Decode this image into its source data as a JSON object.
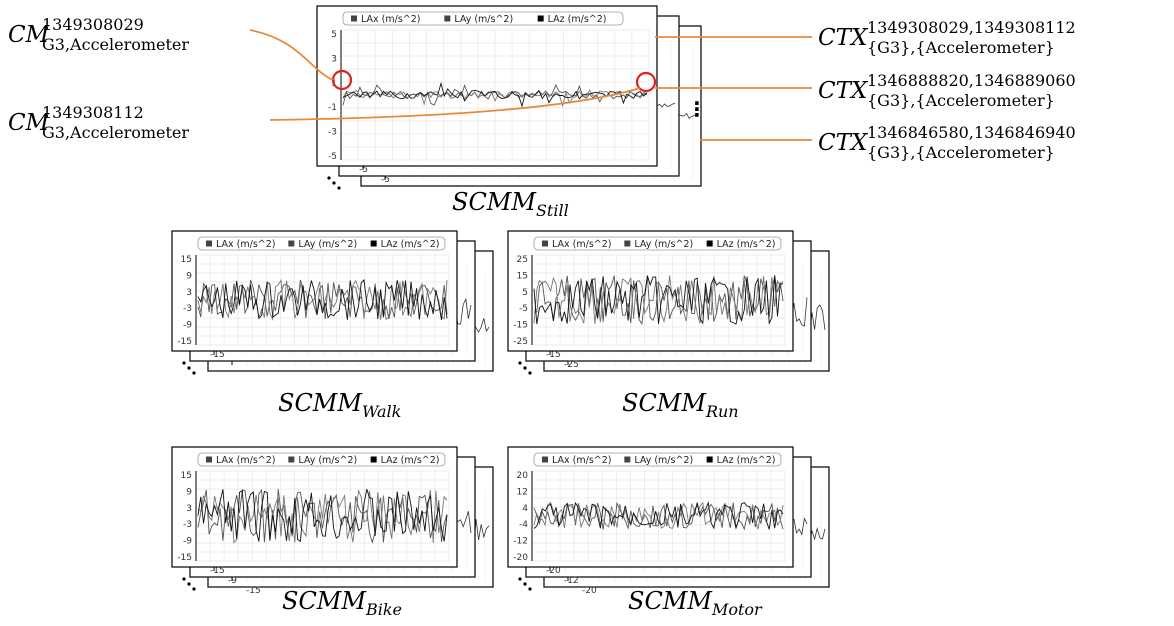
{
  "colors": {
    "connector": "#e8893a",
    "highlight": "#e02020",
    "signal": "#333333",
    "grid": "#e6e6e6"
  },
  "legend_items": [
    "LAx (m/s^2)",
    "LAy (m/s^2)",
    "LAz (m/s^2)"
  ],
  "labels": {
    "cm1": {
      "base": "CM",
      "sup": "1349308029",
      "sub": "G3,Accelerometer"
    },
    "cm2": {
      "base": "CM",
      "sup": "1349308112",
      "sub": "G3,Accelerometer"
    },
    "ctx1": {
      "base": "CTX",
      "sup": "1349308029,1349308112",
      "sub": "{G3},{Accelerometer}"
    },
    "ctx2": {
      "base": "CTX",
      "sup": "1346888820,1346889060",
      "sub": "{G3},{Accelerometer}"
    },
    "ctx3": {
      "base": "CTX",
      "sup": "1346846580,1346846940",
      "sub": "{G3},{Accelerometer}"
    }
  },
  "panels": [
    {
      "id": "still",
      "base": "SCMM",
      "sub": "Still",
      "ticks": [
        "5",
        "3",
        "1",
        "-1",
        "-3",
        "-5"
      ],
      "back_bottom_ticks": [
        "-5",
        "-5"
      ],
      "amp": 0.06,
      "stack_marker": "⋮"
    },
    {
      "id": "walk",
      "base": "SCMM",
      "sub": "Walk",
      "ticks": [
        "15",
        "9",
        "3",
        "-3",
        "-9",
        "-15"
      ],
      "back_bottom_ticks": [
        "-15"
      ],
      "amp": 0.45
    },
    {
      "id": "run",
      "base": "SCMM",
      "sub": "Run",
      "ticks": [
        "25",
        "15",
        "5",
        "-5",
        "-15",
        "-25"
      ],
      "back_bottom_ticks": [
        "-15",
        "-25"
      ],
      "amp": 0.55
    },
    {
      "id": "bike",
      "base": "SCMM",
      "sub": "Bike",
      "ticks": [
        "15",
        "9",
        "3",
        "-3",
        "-9",
        "-15"
      ],
      "back_bottom_ticks": [
        "-15",
        "-9",
        "-15"
      ],
      "amp": 0.6
    },
    {
      "id": "motor",
      "base": "SCMM",
      "sub": "Motor",
      "ticks": [
        "20",
        "12",
        "4",
        "-4",
        "-12",
        "-20"
      ],
      "back_bottom_ticks": [
        "-20",
        "-12",
        "-20"
      ],
      "amp": 0.3
    }
  ]
}
